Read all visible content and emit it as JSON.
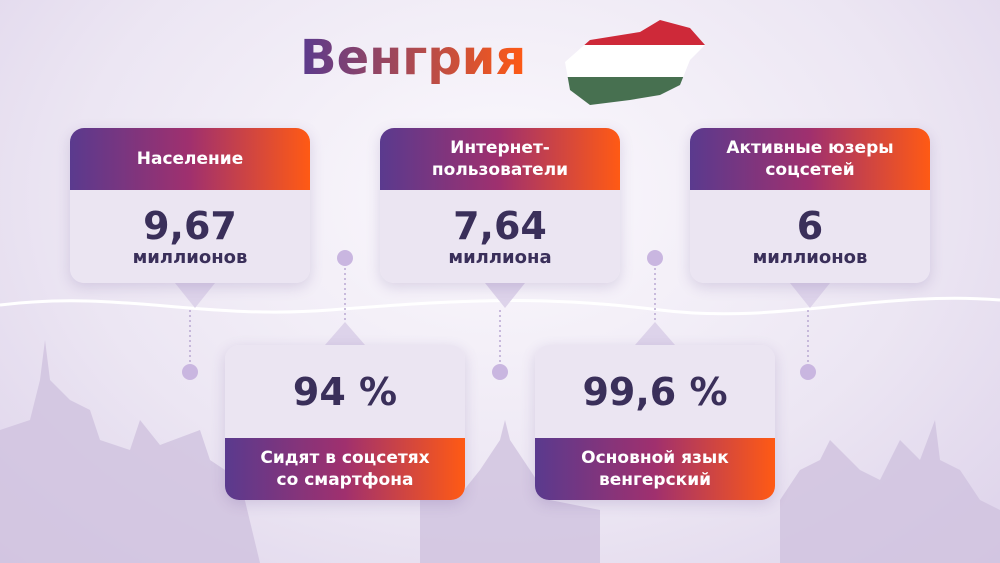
{
  "title": "Венгрия",
  "top_cards": [
    {
      "label": [
        "Население"
      ],
      "value": "9,67",
      "unit": "миллионов"
    },
    {
      "label": [
        "Интернет-",
        "пользователи"
      ],
      "value": "7,64",
      "unit": "миллиона"
    },
    {
      "label": [
        "Активные юзеры",
        "соцсетей"
      ],
      "value": "6",
      "unit": "миллионов"
    }
  ],
  "bottom_cards": [
    {
      "value": "94 %",
      "label": [
        "Сидят в соцсетях",
        "со смартфона"
      ]
    },
    {
      "value": "99,6 %",
      "label": [
        "Основной язык",
        "венгерский"
      ]
    }
  ]
}
